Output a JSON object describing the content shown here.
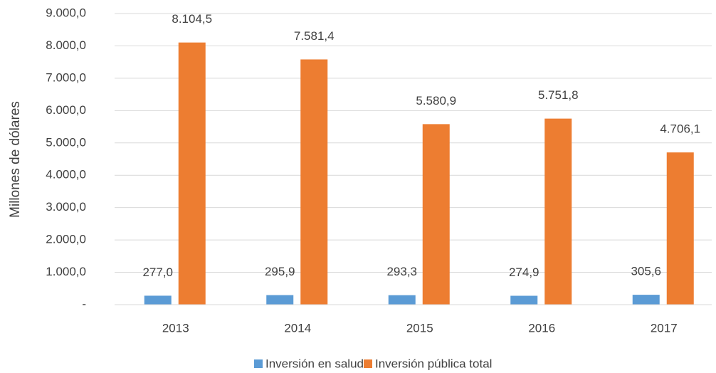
{
  "chart_data": {
    "type": "bar",
    "ylabel": "Millones de dólares",
    "categories": [
      "2013",
      "2014",
      "2015",
      "2016",
      "2017"
    ],
    "series": [
      {
        "name": "Inversión en salud",
        "color": "#5b9bd5",
        "values": [
          277.0,
          295.9,
          293.3,
          274.9,
          305.6
        ],
        "value_labels": [
          "277,0",
          "295,9",
          "293,3",
          "274,9",
          "305,6"
        ]
      },
      {
        "name": "Inversión pública total",
        "color": "#ed7d31",
        "values": [
          8104.5,
          7581.4,
          5580.9,
          5751.8,
          4706.1
        ],
        "value_labels": [
          "8.104,5",
          "7.581,4",
          "5.580,9",
          "5.751,8",
          "4.706,1"
        ]
      }
    ],
    "ylim": [
      0,
      9000
    ],
    "yticks": [
      {
        "value": 0,
        "label": "-"
      },
      {
        "value": 1000,
        "label": "1.000,0"
      },
      {
        "value": 2000,
        "label": "2.000,0"
      },
      {
        "value": 3000,
        "label": "3.000,0"
      },
      {
        "value": 4000,
        "label": "4.000,0"
      },
      {
        "value": 5000,
        "label": "5.000,0"
      },
      {
        "value": 6000,
        "label": "6.000,0"
      },
      {
        "value": 7000,
        "label": "7.000,0"
      },
      {
        "value": 8000,
        "label": "8.000,0"
      },
      {
        "value": 9000,
        "label": "9.000,0"
      }
    ],
    "grid": true,
    "legend": "bottom"
  }
}
